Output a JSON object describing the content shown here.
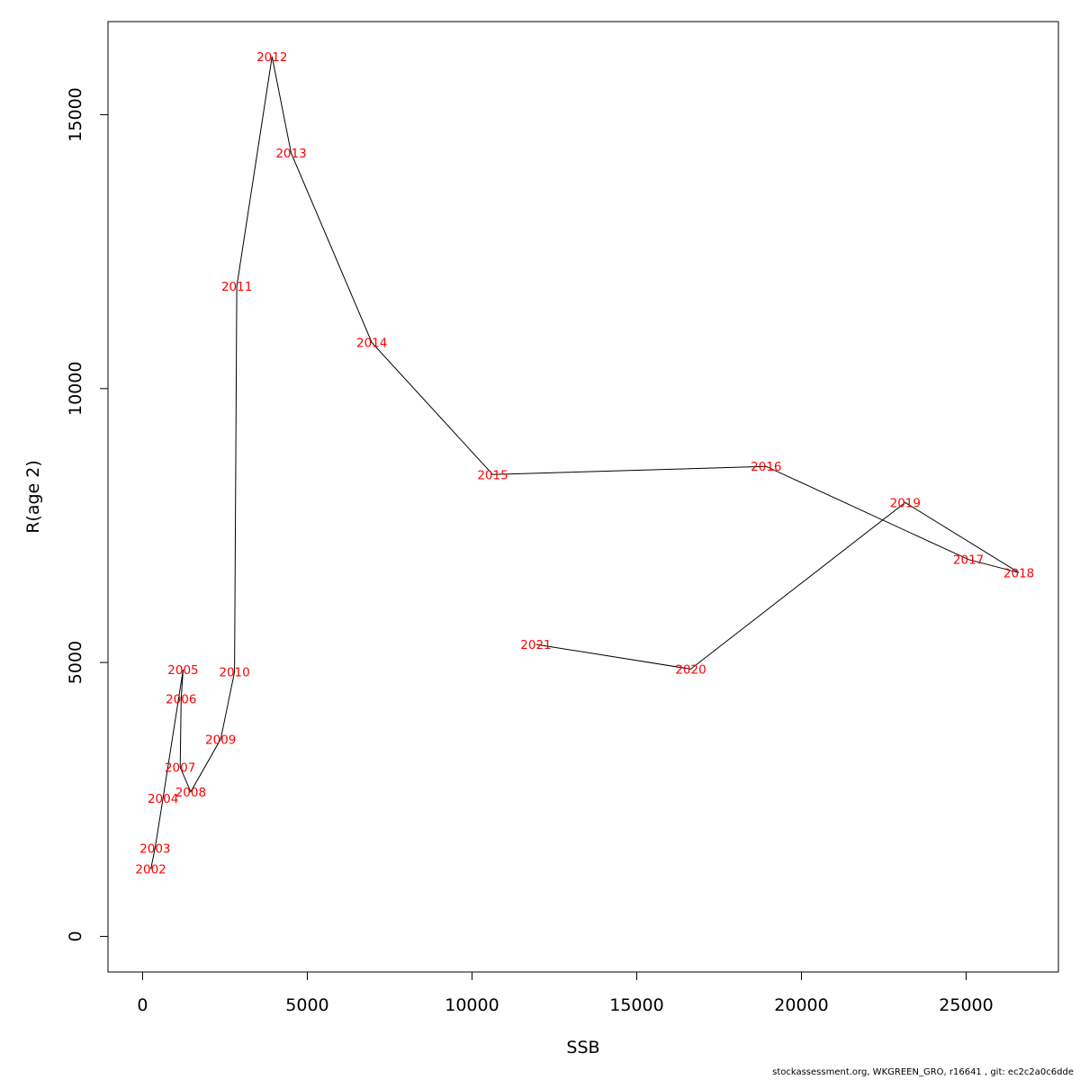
{
  "chart_data": {
    "type": "line",
    "title": "",
    "xlabel": "SSB",
    "ylabel": "R(age 2)",
    "xlim": [
      -1050,
      27800
    ],
    "ylim": [
      -650,
      16700
    ],
    "x_ticks": [
      0,
      5000,
      10000,
      15000,
      20000,
      25000
    ],
    "y_ticks": [
      0,
      5000,
      10000,
      15000
    ],
    "grid": false,
    "line_color": "#000000",
    "label_color": "#ff0000",
    "points": [
      {
        "label": "2002",
        "x": 250,
        "y": 1230
      },
      {
        "label": "2003",
        "x": 380,
        "y": 1610
      },
      {
        "label": "2004",
        "x": 620,
        "y": 2520
      },
      {
        "label": "2005",
        "x": 1230,
        "y": 4870
      },
      {
        "label": "2006",
        "x": 1170,
        "y": 4340
      },
      {
        "label": "2007",
        "x": 1140,
        "y": 3090
      },
      {
        "label": "2008",
        "x": 1460,
        "y": 2640
      },
      {
        "label": "2009",
        "x": 2370,
        "y": 3600
      },
      {
        "label": "2010",
        "x": 2790,
        "y": 4830
      },
      {
        "label": "2011",
        "x": 2860,
        "y": 11870
      },
      {
        "label": "2012",
        "x": 3930,
        "y": 16060
      },
      {
        "label": "2013",
        "x": 4510,
        "y": 14300
      },
      {
        "label": "2014",
        "x": 6960,
        "y": 10840
      },
      {
        "label": "2015",
        "x": 10630,
        "y": 8430
      },
      {
        "label": "2016",
        "x": 18930,
        "y": 8580
      },
      {
        "label": "2017",
        "x": 25070,
        "y": 6880
      },
      {
        "label": "2018",
        "x": 26600,
        "y": 6640
      },
      {
        "label": "2019",
        "x": 23150,
        "y": 7920
      },
      {
        "label": "2020",
        "x": 16640,
        "y": 4880
      },
      {
        "label": "2021",
        "x": 11940,
        "y": 5330
      }
    ]
  },
  "footer": "stockassessment.org, WKGREEN_GRO, r16641 , git: ec2c2a0c6dde"
}
